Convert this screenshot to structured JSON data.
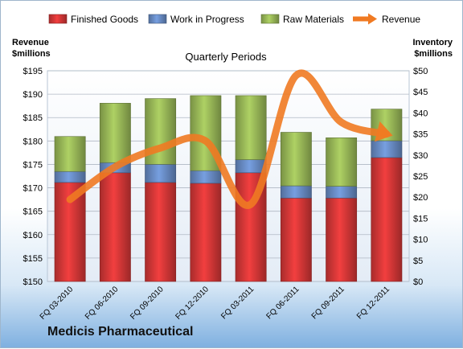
{
  "company_name": "Medicis Pharmaceutical",
  "chart_data": {
    "type": "bar",
    "stacked": true,
    "title": "Quarterly Periods",
    "categories": [
      "FQ 03-2010",
      "FQ 06-2010",
      "FQ 09-2010",
      "FQ 12-2010",
      "FQ 03-2011",
      "FQ 06-2011",
      "FQ 09-2011",
      "FQ 12-2011"
    ],
    "left_axis": {
      "label_line1": "Revenue",
      "label_line2": "$millions",
      "min": 150,
      "max": 195,
      "step": 5,
      "tick_labels": [
        "$150",
        "$155",
        "$160",
        "$165",
        "$170",
        "$175",
        "$180",
        "$185",
        "$190",
        "$195"
      ]
    },
    "right_axis": {
      "label_line1": "Inventory",
      "label_line2": "$millions",
      "min": 0,
      "max": 50,
      "step": 5,
      "tick_labels": [
        "$0",
        "$5",
        "$10",
        "$15",
        "$20",
        "$25",
        "$30",
        "$35",
        "$40",
        "$45",
        "$50"
      ]
    },
    "series": [
      {
        "name": "Finished Goods",
        "axis": "right",
        "kind": "bar",
        "color": "#d83838",
        "values": [
          23.5,
          25.8,
          23.5,
          23.3,
          25.8,
          19.8,
          19.8,
          29.4
        ]
      },
      {
        "name": "Work in Progress",
        "axis": "right",
        "kind": "bar",
        "color": "#6a8ec8",
        "values": [
          2.6,
          2.4,
          4.3,
          3.0,
          3.1,
          2.9,
          2.8,
          4.0
        ]
      },
      {
        "name": "Raw Materials",
        "axis": "right",
        "kind": "bar",
        "color": "#9bbb59",
        "values": [
          8.3,
          14.1,
          15.6,
          17.8,
          15.2,
          12.7,
          11.5,
          7.5
        ]
      },
      {
        "name": "Revenue",
        "axis": "left",
        "kind": "line",
        "color": "#f07a22",
        "values": [
          167.5,
          174.5,
          178.5,
          180.0,
          166.5,
          194.0,
          184.0,
          181.5
        ]
      }
    ],
    "grid": true,
    "legend_position": "top"
  }
}
